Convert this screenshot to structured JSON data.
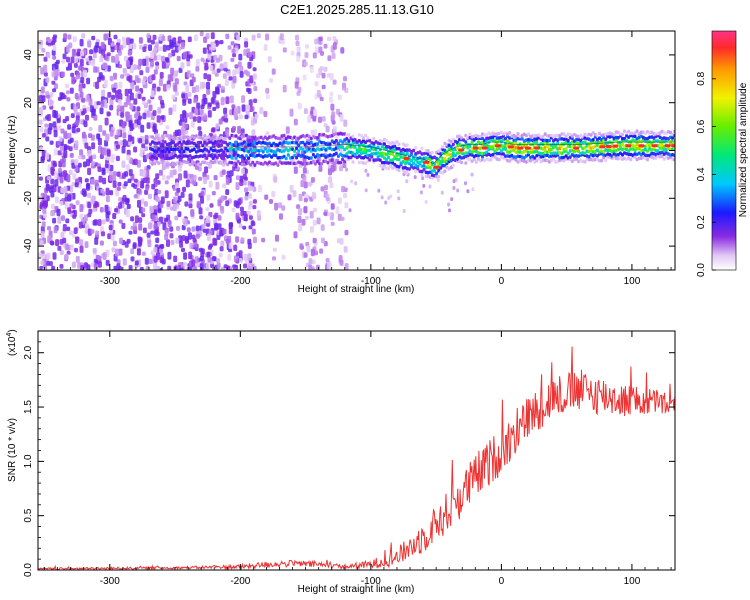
{
  "title": "C2E1.2025.285.11.13.G10",
  "chart_data": [
    {
      "type": "heatmap",
      "name": "spectrogram",
      "xlabel": "Height of straight line (km)",
      "ylabel": "Frequency (Hz)",
      "xlim": [
        -355,
        133
      ],
      "ylim": [
        -50,
        50
      ],
      "xticks": [
        -300,
        -200,
        -100,
        0,
        100
      ],
      "yticks": [
        -40,
        -20,
        0,
        20,
        40
      ],
      "ridge": {
        "x": [
          -270,
          -200,
          -150,
          -120,
          -100,
          -85,
          -70,
          -60,
          -52,
          -45,
          -35,
          -25,
          -15,
          -8,
          0,
          10,
          30,
          60,
          90,
          133
        ],
        "freq": [
          0,
          0,
          0,
          1,
          0,
          -2,
          -4,
          -5,
          -7,
          -3,
          0,
          1,
          1,
          2,
          2,
          1,
          1,
          1,
          2,
          2
        ]
      },
      "colorbar": {
        "label": "Normalized spectral amplitude",
        "range": [
          0,
          1
        ],
        "ticks": [
          "0.0",
          "0.2",
          "0.4",
          "0.6",
          "0.8"
        ],
        "tick_values": [
          0,
          0.2,
          0.4,
          0.6,
          0.8
        ]
      }
    },
    {
      "type": "line",
      "name": "snr",
      "xlabel": "Height of straight line (km)",
      "ylabel": "SNR (10 * v/v)",
      "y_exponent": "(x10",
      "y_exponent_power": "4",
      "y_exponent_close": ")",
      "xlim": [
        -355,
        133
      ],
      "ylim": [
        0,
        2.2
      ],
      "xticks": [
        -300,
        -200,
        -100,
        0,
        100
      ],
      "yticks": [
        "0.0",
        "0.5",
        "1.0",
        "1.5",
        "2.0"
      ],
      "ytick_values": [
        0,
        0.5,
        1.0,
        1.5,
        2.0
      ],
      "color": "#ee3333",
      "envelope": {
        "x": [
          -355,
          -250,
          -200,
          -180,
          -160,
          -140,
          -120,
          -100,
          -80,
          -60,
          -40,
          -20,
          0,
          20,
          40,
          60,
          80,
          100,
          120,
          133
        ],
        "mean": [
          0.01,
          0.02,
          0.03,
          0.05,
          0.06,
          0.05,
          0.03,
          0.05,
          0.12,
          0.3,
          0.55,
          0.85,
          1.1,
          1.4,
          1.6,
          1.65,
          1.6,
          1.55,
          1.55,
          1.5
        ],
        "noise": [
          0.01,
          0.01,
          0.02,
          0.03,
          0.03,
          0.03,
          0.02,
          0.04,
          0.08,
          0.15,
          0.2,
          0.22,
          0.22,
          0.2,
          0.2,
          0.2,
          0.18,
          0.15,
          0.12,
          0.1
        ]
      }
    }
  ]
}
